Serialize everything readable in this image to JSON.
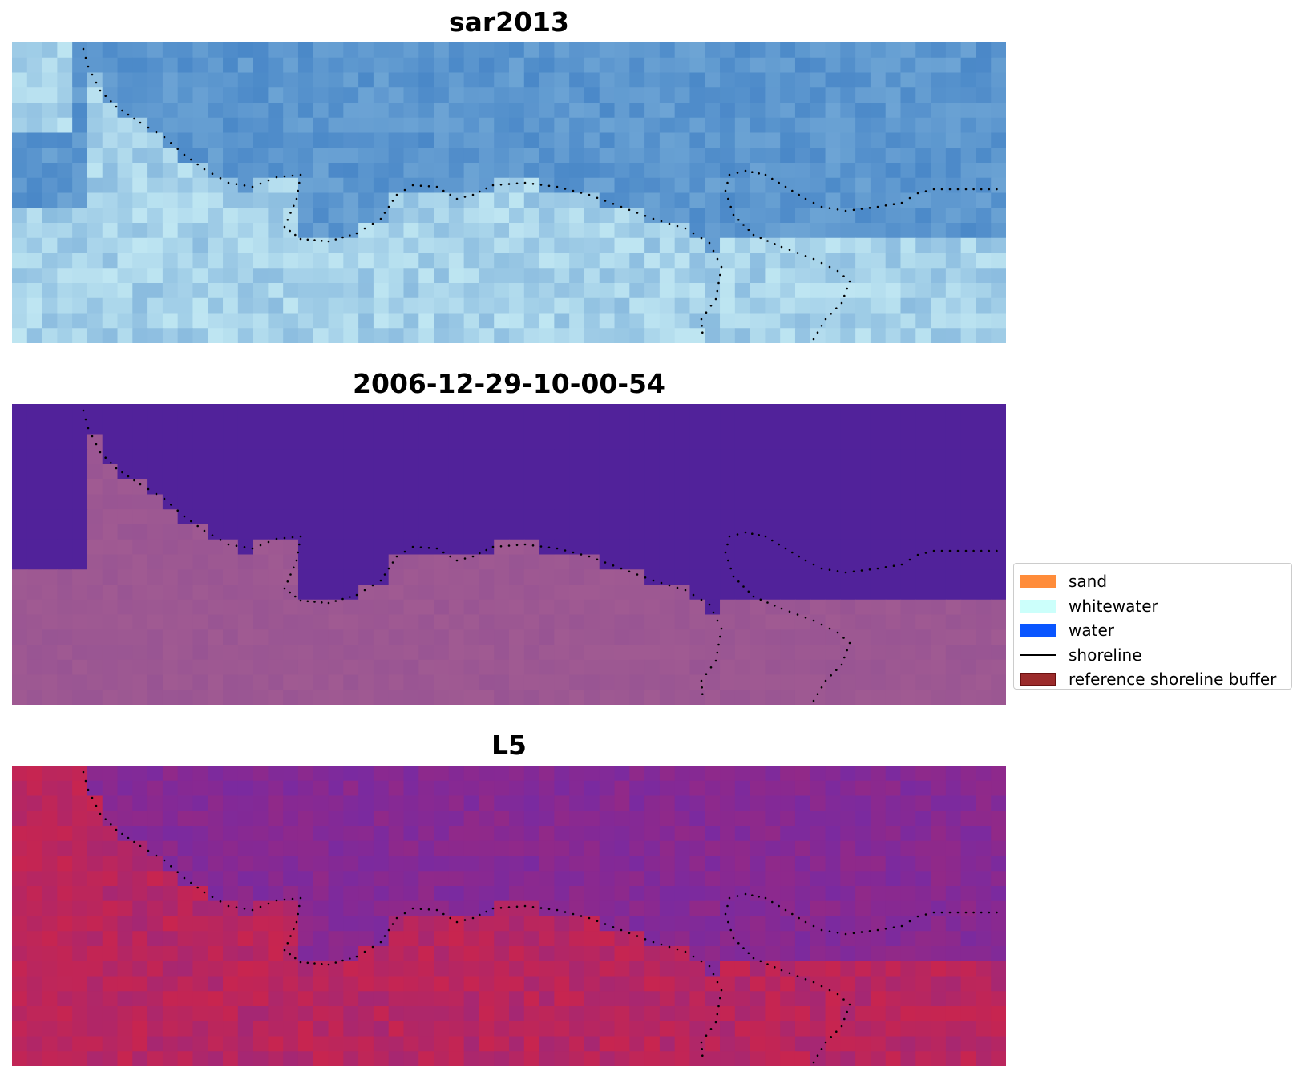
{
  "panels": [
    {
      "title": "sar2013",
      "style": "sar"
    },
    {
      "title": "2006-12-29-10-00-54",
      "style": "class"
    },
    {
      "title": "L5",
      "style": "l5"
    }
  ],
  "legend": {
    "items": [
      {
        "label": "sand",
        "kind": "patch",
        "color": "#ff8c3a"
      },
      {
        "label": "whitewater",
        "kind": "patch",
        "color": "#ccfffb"
      },
      {
        "label": "water",
        "kind": "patch",
        "color": "#0a56ff"
      },
      {
        "label": "shoreline",
        "kind": "line",
        "color": "#000000"
      },
      {
        "label": "reference shoreline buffer",
        "kind": "patch",
        "color": "#9b2b2b",
        "edge": "#6a1010"
      }
    ]
  },
  "colors": {
    "sar_water": "#4a88c8",
    "sar_land": "#bfe6f2",
    "class_water": "#51229a",
    "class_land": "#a05a92",
    "l5_water": "#7a2aa0",
    "l5_land": "#c8254f",
    "shoreline_dots": "#000000"
  }
}
